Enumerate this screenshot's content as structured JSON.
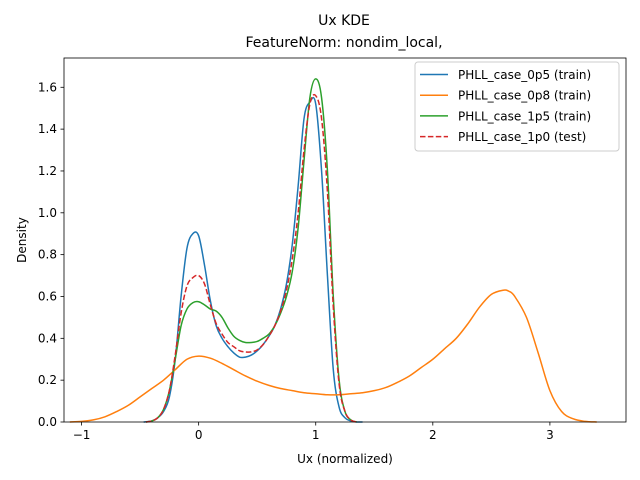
{
  "chart_data": {
    "type": "line",
    "title": "Ux KDE",
    "subtitle": "FeatureNorm: nondim_local,",
    "xlabel": "Ux (normalized)",
    "ylabel": "Density",
    "xlim": [
      -1.15,
      3.65
    ],
    "ylim": [
      0,
      1.74
    ],
    "xticks": [
      -1,
      0,
      1,
      2,
      3
    ],
    "xtick_labels": [
      "−1",
      "0",
      "1",
      "2",
      "3"
    ],
    "yticks": [
      0.0,
      0.2,
      0.4,
      0.6,
      0.8,
      1.0,
      1.2,
      1.4,
      1.6
    ],
    "ytick_labels": [
      "0.0",
      "0.2",
      "0.4",
      "0.6",
      "0.8",
      "1.0",
      "1.2",
      "1.4",
      "1.6"
    ],
    "grid": false,
    "legend_position": "top-right",
    "series": [
      {
        "name": "PHLL_case_0p5 (train)",
        "color": "#1f77b4",
        "dash": "solid",
        "x": [
          -0.47,
          -0.4,
          -0.35,
          -0.3,
          -0.25,
          -0.2,
          -0.15,
          -0.1,
          -0.05,
          0.0,
          0.05,
          0.1,
          0.15,
          0.2,
          0.25,
          0.3,
          0.35,
          0.4,
          0.45,
          0.5,
          0.55,
          0.6,
          0.65,
          0.7,
          0.75,
          0.8,
          0.85,
          0.9,
          0.95,
          1.0,
          1.05,
          1.1,
          1.15,
          1.2,
          1.25,
          1.3,
          1.35,
          1.4
        ],
        "y": [
          0.0,
          0.005,
          0.02,
          0.05,
          0.12,
          0.3,
          0.6,
          0.83,
          0.9,
          0.89,
          0.75,
          0.58,
          0.46,
          0.4,
          0.36,
          0.33,
          0.31,
          0.31,
          0.32,
          0.34,
          0.37,
          0.41,
          0.46,
          0.54,
          0.66,
          0.85,
          1.13,
          1.45,
          1.53,
          1.52,
          1.2,
          0.7,
          0.25,
          0.07,
          0.02,
          0.005,
          0.0,
          0.0
        ]
      },
      {
        "name": "PHLL_case_0p8 (train)",
        "color": "#ff7f0e",
        "dash": "solid",
        "x": [
          -1.1,
          -1.0,
          -0.9,
          -0.8,
          -0.7,
          -0.6,
          -0.5,
          -0.4,
          -0.3,
          -0.2,
          -0.1,
          0.0,
          0.1,
          0.2,
          0.3,
          0.4,
          0.5,
          0.6,
          0.7,
          0.8,
          0.9,
          1.0,
          1.1,
          1.2,
          1.3,
          1.4,
          1.5,
          1.6,
          1.7,
          1.8,
          1.9,
          2.0,
          2.1,
          2.2,
          2.3,
          2.4,
          2.5,
          2.6,
          2.65,
          2.7,
          2.8,
          2.9,
          3.0,
          3.1,
          3.2,
          3.3,
          3.4
        ],
        "y": [
          0.0,
          0.003,
          0.01,
          0.025,
          0.05,
          0.08,
          0.12,
          0.16,
          0.2,
          0.25,
          0.3,
          0.315,
          0.305,
          0.28,
          0.25,
          0.22,
          0.195,
          0.175,
          0.16,
          0.15,
          0.14,
          0.135,
          0.13,
          0.13,
          0.135,
          0.14,
          0.15,
          0.165,
          0.19,
          0.22,
          0.26,
          0.3,
          0.35,
          0.4,
          0.47,
          0.55,
          0.61,
          0.63,
          0.625,
          0.6,
          0.5,
          0.33,
          0.15,
          0.05,
          0.015,
          0.003,
          0.0
        ]
      },
      {
        "name": "PHLL_case_1p5 (train)",
        "color": "#2ca02c",
        "dash": "solid",
        "x": [
          -0.45,
          -0.4,
          -0.35,
          -0.3,
          -0.25,
          -0.2,
          -0.15,
          -0.1,
          -0.05,
          0.0,
          0.05,
          0.1,
          0.15,
          0.2,
          0.25,
          0.3,
          0.35,
          0.4,
          0.45,
          0.5,
          0.55,
          0.6,
          0.65,
          0.7,
          0.75,
          0.8,
          0.85,
          0.9,
          0.95,
          1.0,
          1.05,
          1.1,
          1.15,
          1.2,
          1.25,
          1.3,
          1.35
        ],
        "y": [
          0.0,
          0.005,
          0.02,
          0.06,
          0.15,
          0.3,
          0.46,
          0.54,
          0.57,
          0.575,
          0.56,
          0.54,
          0.53,
          0.5,
          0.45,
          0.41,
          0.39,
          0.38,
          0.38,
          0.385,
          0.4,
          0.42,
          0.46,
          0.52,
          0.6,
          0.72,
          0.93,
          1.25,
          1.55,
          1.64,
          1.55,
          1.2,
          0.6,
          0.2,
          0.05,
          0.01,
          0.0
        ]
      },
      {
        "name": "PHLL_case_1p0 (test)",
        "color": "#d62728",
        "dash": "dashed",
        "x": [
          -0.45,
          -0.4,
          -0.35,
          -0.3,
          -0.25,
          -0.2,
          -0.15,
          -0.1,
          -0.05,
          0.0,
          0.05,
          0.1,
          0.15,
          0.2,
          0.25,
          0.3,
          0.35,
          0.4,
          0.45,
          0.5,
          0.55,
          0.6,
          0.65,
          0.7,
          0.75,
          0.8,
          0.85,
          0.9,
          0.95,
          1.0,
          1.05,
          1.1,
          1.15,
          1.2,
          1.25,
          1.3,
          1.35
        ],
        "y": [
          0.0,
          0.005,
          0.02,
          0.06,
          0.15,
          0.32,
          0.52,
          0.65,
          0.69,
          0.7,
          0.66,
          0.56,
          0.47,
          0.42,
          0.38,
          0.36,
          0.34,
          0.335,
          0.335,
          0.345,
          0.37,
          0.41,
          0.46,
          0.53,
          0.63,
          0.78,
          1.0,
          1.3,
          1.52,
          1.56,
          1.45,
          1.1,
          0.55,
          0.18,
          0.05,
          0.01,
          0.0
        ]
      }
    ]
  }
}
